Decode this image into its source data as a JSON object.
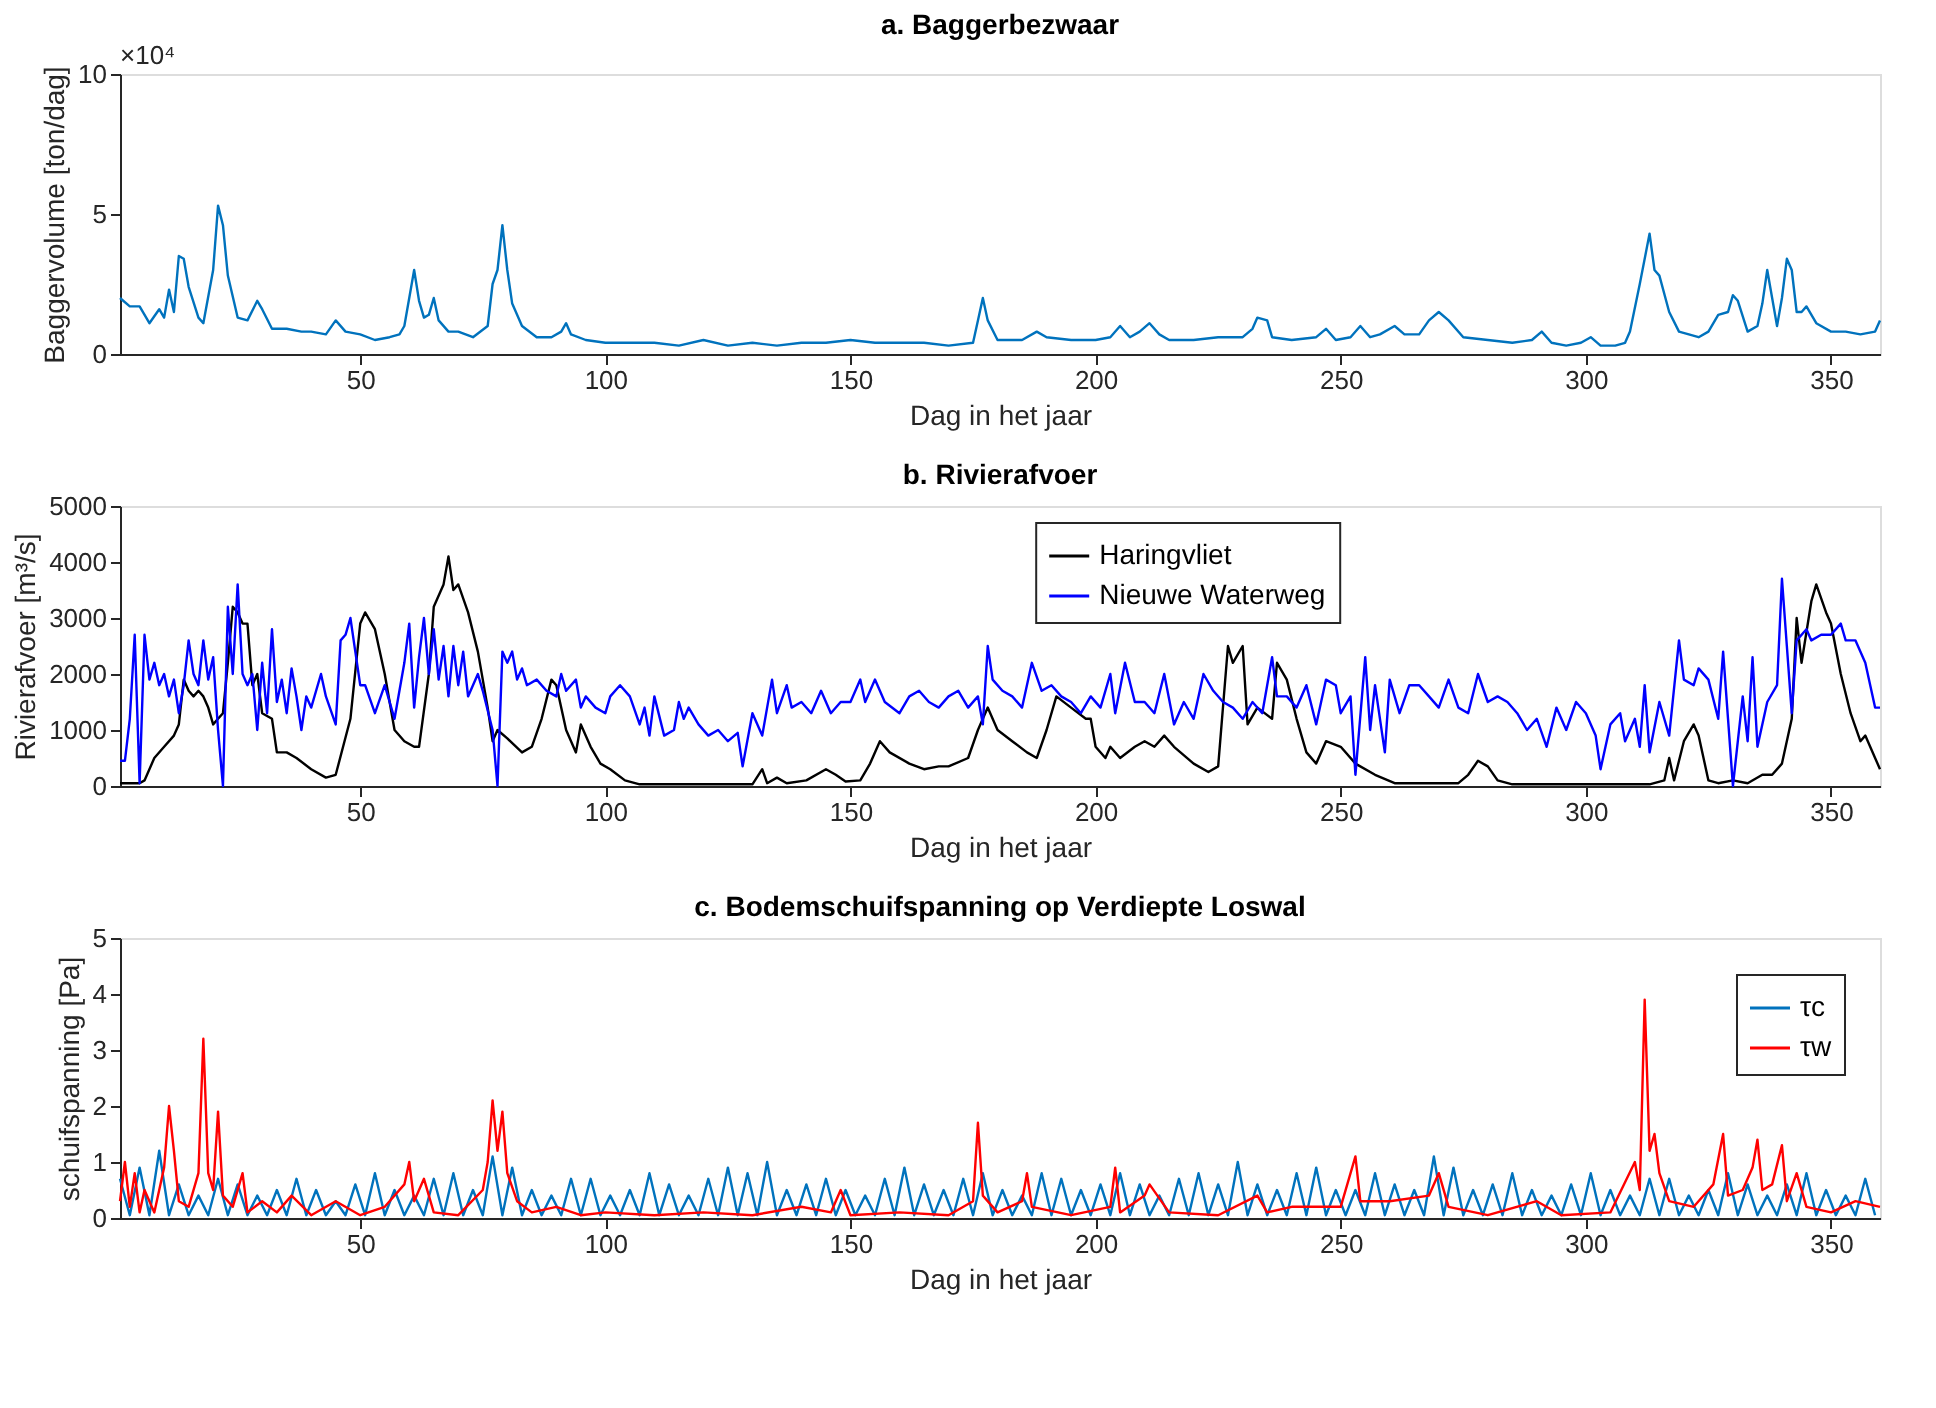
{
  "chart_data": [
    {
      "type": "line",
      "title": "a. Baggerbezwaar",
      "xlabel": "Dag in het jaar",
      "ylabel": "Baggervolume [ton/dag]",
      "annotations": [
        "×10⁴"
      ],
      "xlim": [
        1,
        360
      ],
      "xticks": [
        50,
        100,
        150,
        200,
        250,
        300,
        350
      ],
      "ylim": [
        0,
        10
      ],
      "yticks": [
        0,
        5,
        10
      ],
      "grid": false,
      "legend": false,
      "series": [
        {
          "color": "#0072bd",
          "x": [
            1,
            3,
            5,
            7,
            9,
            10,
            11,
            12,
            13,
            14,
            15,
            17,
            18,
            20,
            21,
            22,
            23,
            25,
            27,
            29,
            30,
            32,
            35,
            38,
            40,
            43,
            45,
            47,
            50,
            53,
            56,
            58,
            59,
            61,
            62,
            63,
            64,
            65,
            66,
            68,
            70,
            73,
            76,
            77,
            78,
            79,
            80,
            81,
            83,
            86,
            89,
            91,
            92,
            93,
            96,
            100,
            110,
            115,
            120,
            125,
            130,
            135,
            140,
            145,
            150,
            155,
            160,
            165,
            170,
            175,
            176,
            177,
            178,
            180,
            185,
            188,
            190,
            195,
            200,
            203,
            205,
            207,
            209,
            211,
            213,
            215,
            220,
            225,
            230,
            232,
            233,
            235,
            236,
            240,
            245,
            247,
            249,
            252,
            254,
            256,
            258,
            261,
            263,
            266,
            268,
            270,
            272,
            275,
            280,
            285,
            289,
            291,
            293,
            296,
            299,
            301,
            303,
            306,
            308,
            309,
            311,
            313,
            314,
            315,
            317,
            319,
            321,
            323,
            325,
            327,
            329,
            330,
            331,
            333,
            335,
            336,
            337,
            338,
            339,
            340,
            341,
            342,
            343,
            344,
            345,
            347,
            350,
            353,
            356,
            359,
            360
          ],
          "values": [
            2.0,
            1.7,
            1.7,
            1.1,
            1.6,
            1.3,
            2.3,
            1.5,
            3.5,
            3.4,
            2.4,
            1.3,
            1.1,
            3.0,
            5.3,
            4.6,
            2.8,
            1.3,
            1.2,
            1.9,
            1.6,
            0.9,
            0.9,
            0.8,
            0.8,
            0.7,
            1.2,
            0.8,
            0.7,
            0.5,
            0.6,
            0.7,
            1.0,
            3.0,
            1.9,
            1.3,
            1.4,
            2.0,
            1.2,
            0.8,
            0.8,
            0.6,
            1.0,
            2.5,
            3.0,
            4.6,
            3.0,
            1.8,
            1.0,
            0.6,
            0.6,
            0.8,
            1.1,
            0.7,
            0.5,
            0.4,
            0.4,
            0.3,
            0.5,
            0.3,
            0.4,
            0.3,
            0.4,
            0.4,
            0.5,
            0.4,
            0.4,
            0.4,
            0.3,
            0.4,
            1.2,
            2.0,
            1.2,
            0.5,
            0.5,
            0.8,
            0.6,
            0.5,
            0.5,
            0.6,
            1.0,
            0.6,
            0.8,
            1.1,
            0.7,
            0.5,
            0.5,
            0.6,
            0.6,
            0.9,
            1.3,
            1.2,
            0.6,
            0.5,
            0.6,
            0.9,
            0.5,
            0.6,
            1.0,
            0.6,
            0.7,
            1.0,
            0.7,
            0.7,
            1.2,
            1.5,
            1.2,
            0.6,
            0.5,
            0.4,
            0.5,
            0.8,
            0.4,
            0.3,
            0.4,
            0.6,
            0.3,
            0.3,
            0.4,
            0.8,
            2.5,
            4.3,
            3.0,
            2.8,
            1.5,
            0.8,
            0.7,
            0.6,
            0.8,
            1.4,
            1.5,
            2.1,
            1.9,
            0.8,
            1.0,
            1.8,
            3.0,
            2.0,
            1.0,
            2.0,
            3.4,
            3.0,
            1.5,
            1.5,
            1.7,
            1.1,
            0.8,
            0.8,
            0.7,
            0.8,
            1.2
          ]
        }
      ]
    },
    {
      "type": "line",
      "title": "b. Rivierafvoer",
      "xlabel": "Dag in het jaar",
      "ylabel": "Rivierafvoer [m³/s]",
      "xlim": [
        1,
        360
      ],
      "xticks": [
        50,
        100,
        150,
        200,
        250,
        300,
        350
      ],
      "ylim": [
        0,
        5000
      ],
      "yticks": [
        0,
        1000,
        2000,
        3000,
        4000,
        5000
      ],
      "grid": false,
      "legend": "top",
      "series": [
        {
          "name": "Haringvliet",
          "color": "#000000",
          "x": [
            1,
            5,
            6,
            8,
            10,
            12,
            13,
            14,
            15,
            16,
            17,
            18,
            19,
            20,
            21,
            22,
            23,
            24,
            25,
            26,
            27,
            28,
            29,
            30,
            32,
            33,
            35,
            37,
            40,
            43,
            45,
            48,
            50,
            51,
            53,
            55,
            57,
            59,
            61,
            62,
            64,
            65,
            67,
            68,
            69,
            70,
            72,
            74,
            76,
            77,
            78,
            80,
            83,
            85,
            87,
            89,
            90,
            92,
            94,
            95,
            97,
            99,
            101,
            104,
            107,
            120,
            130,
            132,
            133,
            135,
            137,
            141,
            145,
            147,
            149,
            152,
            154,
            156,
            158,
            162,
            165,
            168,
            170,
            174,
            176,
            178,
            180,
            183,
            186,
            188,
            190,
            192,
            195,
            198,
            199,
            200,
            202,
            203,
            205,
            208,
            210,
            212,
            214,
            216,
            220,
            223,
            225,
            227,
            228,
            230,
            231,
            233,
            236,
            237,
            239,
            241,
            243,
            245,
            247,
            250,
            253,
            257,
            261,
            270,
            274,
            276,
            278,
            280,
            282,
            285,
            300,
            313,
            316,
            317,
            318,
            320,
            322,
            323,
            325,
            327,
            330,
            333,
            336,
            338,
            340,
            342,
            343,
            344,
            346,
            347,
            349,
            350,
            352,
            354,
            356,
            357,
            359,
            360
          ],
          "values": [
            50,
            50,
            100,
            500,
            700,
            900,
            1100,
            1900,
            1700,
            1600,
            1700,
            1600,
            1400,
            1100,
            1200,
            1300,
            2200,
            3200,
            3100,
            2900,
            2900,
            1800,
            2000,
            1300,
            1200,
            600,
            600,
            500,
            300,
            150,
            200,
            1200,
            2900,
            3100,
            2800,
            2000,
            1000,
            800,
            700,
            700,
            2000,
            3200,
            3600,
            4100,
            3500,
            3600,
            3100,
            2400,
            1400,
            800,
            1000,
            850,
            600,
            700,
            1200,
            1900,
            1800,
            1000,
            600,
            1100,
            700,
            400,
            300,
            100,
            30,
            30,
            30,
            300,
            50,
            150,
            50,
            100,
            300,
            200,
            80,
            100,
            400,
            800,
            600,
            400,
            300,
            350,
            350,
            500,
            1000,
            1400,
            1000,
            800,
            600,
            500,
            1000,
            1600,
            1400,
            1200,
            1200,
            700,
            500,
            700,
            500,
            700,
            800,
            700,
            900,
            700,
            400,
            250,
            350,
            2500,
            2200,
            2500,
            1100,
            1400,
            1200,
            2200,
            1900,
            1200,
            600,
            400,
            800,
            700,
            400,
            200,
            50,
            50,
            50,
            200,
            450,
            350,
            100,
            30,
            30,
            30,
            100,
            500,
            100,
            800,
            1100,
            900,
            100,
            50,
            100,
            50,
            200,
            200,
            400,
            1200,
            3000,
            2200,
            3300,
            3600,
            3100,
            2900,
            2000,
            1300,
            800,
            900,
            500,
            300
          ]
        },
        {
          "name": "Nieuwe Waterweg",
          "color": "#0000ff",
          "x": [
            1,
            2,
            3,
            4,
            5,
            6,
            7,
            8,
            9,
            10,
            11,
            12,
            13,
            14,
            15,
            16,
            17,
            18,
            19,
            20,
            21,
            22,
            23,
            24,
            25,
            26,
            27,
            28,
            29,
            30,
            31,
            32,
            33,
            34,
            35,
            36,
            37,
            38,
            39,
            40,
            42,
            43,
            45,
            46,
            47,
            48,
            49,
            50,
            51,
            53,
            55,
            57,
            59,
            60,
            61,
            62,
            63,
            64,
            65,
            66,
            67,
            68,
            69,
            70,
            71,
            72,
            74,
            75,
            77,
            78,
            79,
            80,
            81,
            82,
            83,
            84,
            86,
            88,
            90,
            91,
            92,
            94,
            95,
            96,
            98,
            100,
            101,
            103,
            105,
            107,
            108,
            109,
            110,
            112,
            114,
            115,
            116,
            117,
            119,
            121,
            123,
            125,
            127,
            128,
            130,
            132,
            134,
            135,
            137,
            138,
            140,
            142,
            144,
            146,
            148,
            150,
            152,
            153,
            155,
            157,
            160,
            162,
            164,
            166,
            168,
            170,
            172,
            174,
            176,
            177,
            178,
            179,
            181,
            183,
            185,
            187,
            189,
            191,
            193,
            195,
            197,
            199,
            201,
            203,
            204,
            206,
            208,
            210,
            212,
            214,
            216,
            218,
            220,
            222,
            224,
            226,
            228,
            230,
            232,
            234,
            236,
            237,
            239,
            241,
            243,
            245,
            247,
            249,
            250,
            252,
            253,
            255,
            256,
            257,
            259,
            260,
            262,
            264,
            266,
            268,
            270,
            272,
            274,
            276,
            278,
            280,
            282,
            284,
            286,
            288,
            290,
            292,
            294,
            296,
            298,
            300,
            302,
            303,
            305,
            307,
            308,
            310,
            311,
            312,
            313,
            315,
            317,
            319,
            320,
            322,
            323,
            325,
            327,
            328,
            329,
            330,
            332,
            333,
            334,
            335,
            337,
            339,
            340,
            341,
            342,
            343,
            345,
            346,
            348,
            350,
            352,
            353,
            355,
            357,
            359,
            360
          ],
          "values": [
            450,
            450,
            1200,
            2700,
            50,
            2700,
            1900,
            2200,
            1800,
            2000,
            1600,
            1900,
            1300,
            1800,
            2600,
            2000,
            1800,
            2600,
            1900,
            2300,
            1000,
            0,
            3200,
            2000,
            3600,
            2000,
            1800,
            2000,
            1000,
            2200,
            1300,
            2800,
            1500,
            1900,
            1300,
            2100,
            1600,
            1000,
            1600,
            1400,
            2000,
            1600,
            1100,
            2600,
            2700,
            3000,
            2400,
            1800,
            1800,
            1300,
            1800,
            1200,
            2200,
            2900,
            1400,
            2300,
            3000,
            2000,
            2800,
            1900,
            2500,
            1600,
            2500,
            1800,
            2400,
            1600,
            2000,
            1700,
            1000,
            0,
            2400,
            2200,
            2400,
            1900,
            2100,
            1800,
            1900,
            1700,
            1600,
            2000,
            1700,
            1900,
            1400,
            1600,
            1400,
            1300,
            1600,
            1800,
            1600,
            1100,
            1400,
            900,
            1600,
            900,
            1000,
            1500,
            1200,
            1400,
            1100,
            900,
            1000,
            800,
            950,
            350,
            1300,
            900,
            1900,
            1300,
            1800,
            1400,
            1500,
            1300,
            1700,
            1300,
            1500,
            1500,
            1900,
            1500,
            1900,
            1500,
            1300,
            1600,
            1700,
            1500,
            1400,
            1600,
            1700,
            1400,
            1600,
            1100,
            2500,
            1900,
            1700,
            1600,
            1400,
            2200,
            1700,
            1800,
            1600,
            1500,
            1300,
            1600,
            1400,
            2000,
            1300,
            2200,
            1500,
            1500,
            1300,
            2000,
            1100,
            1500,
            1200,
            2000,
            1700,
            1500,
            1400,
            1200,
            1500,
            1300,
            2300,
            1600,
            1600,
            1400,
            1800,
            1100,
            1900,
            1800,
            1300,
            1600,
            200,
            2300,
            1000,
            1800,
            600,
            1900,
            1300,
            1800,
            1800,
            1600,
            1400,
            1900,
            1400,
            1300,
            2000,
            1500,
            1600,
            1500,
            1300,
            1000,
            1200,
            700,
            1400,
            1000,
            1500,
            1300,
            900,
            300,
            1100,
            1300,
            800,
            1200,
            700,
            1800,
            600,
            1500,
            900,
            2600,
            1900,
            1800,
            2100,
            1900,
            1200,
            2400,
            1200,
            0,
            1600,
            800,
            2300,
            700,
            1500,
            1800,
            3700,
            2500,
            1300,
            2600,
            2800,
            2600,
            2700,
            2700,
            2900,
            2600,
            2600,
            2200,
            1400,
            1400
          ]
        }
      ]
    },
    {
      "type": "line",
      "title": "c. Bodemschuifspanning op Verdiepte Loswal",
      "xlabel": "Dag in het jaar",
      "ylabel": "schuifspanning [Pa]",
      "xlim": [
        1,
        360
      ],
      "xticks": [
        50,
        100,
        150,
        200,
        250,
        300,
        350
      ],
      "ylim": [
        0,
        5
      ],
      "yticks": [
        0,
        1,
        2,
        3,
        4,
        5
      ],
      "grid": false,
      "legend": "top right",
      "series": [
        {
          "name": "τc",
          "color": "#0072bd",
          "x": [
            1,
            3,
            5,
            7,
            9,
            11,
            13,
            15,
            17,
            19,
            21,
            23,
            25,
            27,
            29,
            31,
            33,
            35,
            37,
            39,
            41,
            43,
            45,
            47,
            49,
            51,
            53,
            55,
            57,
            59,
            61,
            63,
            65,
            67,
            69,
            71,
            73,
            75,
            77,
            79,
            81,
            83,
            85,
            87,
            89,
            91,
            93,
            95,
            97,
            99,
            101,
            103,
            105,
            107,
            109,
            111,
            113,
            115,
            117,
            119,
            121,
            123,
            125,
            127,
            129,
            131,
            133,
            135,
            137,
            139,
            141,
            143,
            145,
            147,
            149,
            151,
            153,
            155,
            157,
            159,
            161,
            163,
            165,
            167,
            169,
            171,
            173,
            175,
            177,
            179,
            181,
            183,
            185,
            187,
            189,
            191,
            193,
            195,
            197,
            199,
            201,
            203,
            205,
            207,
            209,
            211,
            213,
            215,
            217,
            219,
            221,
            223,
            225,
            227,
            229,
            231,
            233,
            235,
            237,
            239,
            241,
            243,
            245,
            247,
            249,
            251,
            253,
            255,
            257,
            259,
            261,
            263,
            265,
            267,
            269,
            271,
            273,
            275,
            277,
            279,
            281,
            283,
            285,
            287,
            289,
            291,
            293,
            295,
            297,
            299,
            301,
            303,
            305,
            307,
            309,
            311,
            313,
            315,
            317,
            319,
            321,
            323,
            325,
            327,
            329,
            331,
            333,
            335,
            337,
            339,
            341,
            343,
            345,
            347,
            349,
            351,
            353,
            355,
            357,
            359
          ],
          "values": [
            0.7,
            0.05,
            0.9,
            0.05,
            1.2,
            0.05,
            0.6,
            0.05,
            0.4,
            0.05,
            0.7,
            0.05,
            0.6,
            0.05,
            0.4,
            0.05,
            0.5,
            0.05,
            0.7,
            0.05,
            0.5,
            0.05,
            0.3,
            0.05,
            0.6,
            0.05,
            0.8,
            0.05,
            0.5,
            0.05,
            0.4,
            0.05,
            0.7,
            0.05,
            0.8,
            0.05,
            0.5,
            0.05,
            1.1,
            0.05,
            0.9,
            0.05,
            0.5,
            0.05,
            0.4,
            0.05,
            0.7,
            0.05,
            0.7,
            0.05,
            0.4,
            0.05,
            0.5,
            0.05,
            0.8,
            0.05,
            0.6,
            0.05,
            0.4,
            0.05,
            0.7,
            0.05,
            0.9,
            0.05,
            0.8,
            0.05,
            1.0,
            0.05,
            0.5,
            0.05,
            0.6,
            0.05,
            0.7,
            0.05,
            0.5,
            0.05,
            0.4,
            0.05,
            0.7,
            0.05,
            0.9,
            0.05,
            0.6,
            0.05,
            0.5,
            0.05,
            0.7,
            0.05,
            0.8,
            0.05,
            0.5,
            0.05,
            0.4,
            0.05,
            0.8,
            0.05,
            0.7,
            0.05,
            0.5,
            0.05,
            0.6,
            0.05,
            0.8,
            0.05,
            0.6,
            0.05,
            0.4,
            0.05,
            0.7,
            0.05,
            0.8,
            0.05,
            0.6,
            0.05,
            1.0,
            0.05,
            0.6,
            0.05,
            0.5,
            0.05,
            0.8,
            0.05,
            0.9,
            0.05,
            0.5,
            0.05,
            0.5,
            0.05,
            0.8,
            0.05,
            0.6,
            0.05,
            0.5,
            0.05,
            1.1,
            0.05,
            0.9,
            0.05,
            0.5,
            0.05,
            0.6,
            0.05,
            0.8,
            0.05,
            0.5,
            0.05,
            0.4,
            0.05,
            0.6,
            0.05,
            0.8,
            0.05,
            0.5,
            0.05,
            0.4,
            0.05,
            0.7,
            0.05,
            0.7,
            0.05,
            0.4,
            0.05,
            0.5,
            0.05,
            0.8,
            0.05,
            0.6,
            0.05,
            0.4,
            0.05,
            0.6,
            0.05,
            0.8,
            0.05,
            0.5,
            0.05,
            0.4,
            0.05,
            0.7,
            0.05
          ]
        },
        {
          "name": "τw",
          "color": "#ff0000",
          "x": [
            1,
            2,
            3,
            4,
            5,
            6,
            8,
            10,
            11,
            12,
            13,
            15,
            17,
            18,
            19,
            20,
            21,
            22,
            24,
            26,
            27,
            30,
            33,
            36,
            40,
            45,
            50,
            55,
            59,
            60,
            61,
            63,
            65,
            70,
            75,
            76,
            77,
            78,
            79,
            80,
            82,
            85,
            90,
            95,
            100,
            110,
            120,
            130,
            140,
            146,
            148,
            150,
            160,
            170,
            175,
            176,
            177,
            180,
            185,
            186,
            187,
            195,
            203,
            204,
            205,
            210,
            211,
            215,
            225,
            233,
            235,
            240,
            250,
            253,
            254,
            260,
            268,
            270,
            272,
            280,
            290,
            295,
            305,
            310,
            311,
            312,
            313,
            314,
            315,
            317,
            322,
            326,
            328,
            329,
            332,
            334,
            335,
            336,
            338,
            340,
            341,
            343,
            345,
            350,
            355,
            360
          ],
          "values": [
            0.3,
            1.0,
            0.2,
            0.8,
            0.1,
            0.5,
            0.1,
            0.9,
            2.0,
            1.2,
            0.3,
            0.2,
            0.8,
            3.2,
            0.8,
            0.5,
            1.9,
            0.4,
            0.2,
            0.8,
            0.1,
            0.3,
            0.1,
            0.4,
            0.05,
            0.3,
            0.05,
            0.2,
            0.6,
            1.0,
            0.3,
            0.7,
            0.1,
            0.05,
            0.5,
            1.0,
            2.1,
            1.2,
            1.9,
            0.8,
            0.3,
            0.1,
            0.2,
            0.05,
            0.1,
            0.05,
            0.1,
            0.05,
            0.2,
            0.1,
            0.5,
            0.05,
            0.1,
            0.05,
            0.3,
            1.7,
            0.4,
            0.1,
            0.3,
            0.8,
            0.2,
            0.05,
            0.2,
            0.9,
            0.1,
            0.4,
            0.6,
            0.1,
            0.05,
            0.4,
            0.1,
            0.2,
            0.2,
            1.1,
            0.3,
            0.3,
            0.4,
            0.8,
            0.2,
            0.05,
            0.3,
            0.05,
            0.1,
            1.0,
            0.5,
            3.9,
            1.2,
            1.5,
            0.8,
            0.3,
            0.2,
            0.6,
            1.5,
            0.4,
            0.5,
            0.9,
            1.4,
            0.5,
            0.6,
            1.3,
            0.3,
            0.8,
            0.2,
            0.1,
            0.3,
            0.2
          ]
        }
      ]
    }
  ]
}
